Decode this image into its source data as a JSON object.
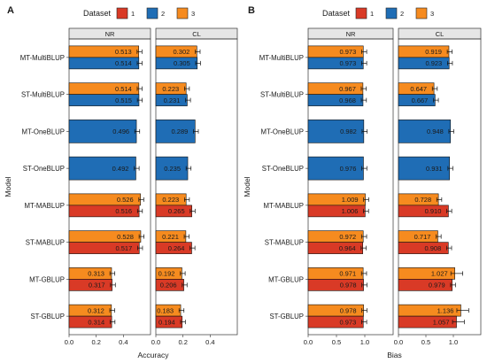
{
  "legend": {
    "title": "Dataset",
    "entries": [
      {
        "label": "1",
        "color": "#D93A26"
      },
      {
        "label": "2",
        "color": "#1F6DB5"
      },
      {
        "label": "3",
        "color": "#F68B1F"
      }
    ]
  },
  "chart_data": [
    {
      "type": "bar",
      "orientation": "horizontal",
      "panel_label": "A",
      "xlabel": "Accuracy",
      "ylabel": "Model",
      "xlim": [
        0,
        0.6
      ],
      "xticks": [
        "0.0",
        "0.2",
        "0.4"
      ],
      "xtick_values": [
        0,
        0.2,
        0.4
      ],
      "facets": [
        "NR",
        "CL"
      ],
      "models": [
        "MT-MultiBLUP",
        "ST-MultiBLUP",
        "MT-OneBLUP",
        "ST-OneBLUP",
        "MT-MABLUP",
        "ST-MABLUP",
        "MT-GBLUP",
        "ST-GBLUP"
      ],
      "series": [
        {
          "dataset": "1",
          "NR": [
            null,
            null,
            null,
            null,
            0.516,
            0.517,
            0.317,
            0.314
          ],
          "CL": [
            null,
            null,
            null,
            null,
            0.265,
            0.264,
            0.206,
            0.194
          ],
          "NR_labels": [
            null,
            null,
            null,
            null,
            "0.516",
            "0.517",
            "0.317",
            "0.314"
          ],
          "CL_labels": [
            null,
            null,
            null,
            null,
            "0.265",
            "0.264",
            "0.206",
            "0.194"
          ]
        },
        {
          "dataset": "2",
          "NR": [
            0.514,
            0.515,
            0.496,
            0.492,
            null,
            null,
            null,
            null
          ],
          "CL": [
            0.305,
            0.231,
            0.289,
            0.235,
            null,
            null,
            null,
            null
          ],
          "NR_labels": [
            "0.514",
            "0.515",
            "0.496",
            "0.492",
            null,
            null,
            null,
            null
          ],
          "CL_labels": [
            "0.305",
            "0.231",
            "0.289",
            "0.235",
            null,
            null,
            null,
            null
          ]
        },
        {
          "dataset": "3",
          "NR": [
            0.513,
            0.514,
            null,
            null,
            0.526,
            0.528,
            0.313,
            0.312
          ],
          "CL": [
            0.302,
            0.223,
            null,
            null,
            0.223,
            0.221,
            0.192,
            0.183
          ],
          "NR_labels": [
            "0.513",
            "0.514",
            null,
            null,
            "0.526",
            "0.528",
            "0.313",
            "0.312"
          ],
          "CL_labels": [
            "0.302",
            "0.223",
            null,
            null,
            "0.223",
            "0.221",
            "0.192",
            "0.183"
          ]
        }
      ]
    },
    {
      "type": "bar",
      "orientation": "horizontal",
      "panel_label": "B",
      "xlabel": "Bias",
      "ylabel": "Model",
      "xlim": [
        0,
        1.5
      ],
      "xticks": [
        "0.0",
        "0.5",
        "1.0"
      ],
      "xtick_values": [
        0,
        0.5,
        1.0
      ],
      "facets": [
        "NR",
        "CL"
      ],
      "models": [
        "MT-MultiBLUP",
        "ST-MultiBLUP",
        "MT-OneBLUP",
        "ST-OneBLUP",
        "MT-MABLUP",
        "ST-MABLUP",
        "MT-GBLUP",
        "ST-GBLUP"
      ],
      "series": [
        {
          "dataset": "1",
          "NR": [
            null,
            null,
            null,
            null,
            1.006,
            0.964,
            0.978,
            0.973
          ],
          "CL": [
            null,
            null,
            null,
            null,
            0.91,
            0.908,
            0.979,
            1.057
          ],
          "NR_labels": [
            null,
            null,
            null,
            null,
            "1.006",
            "0.964",
            "0.978",
            "0.973"
          ],
          "CL_labels": [
            null,
            null,
            null,
            null,
            "0.910",
            "0.908",
            "0.979",
            "1.057"
          ]
        },
        {
          "dataset": "2",
          "NR": [
            0.973,
            0.968,
            0.982,
            0.976,
            null,
            null,
            null,
            null
          ],
          "CL": [
            0.923,
            0.667,
            0.948,
            0.931,
            null,
            null,
            null,
            null
          ],
          "NR_labels": [
            "0.973",
            "0.968",
            "0.982",
            "0.976",
            null,
            null,
            null,
            null
          ],
          "CL_labels": [
            "0.923",
            "0.667",
            "0.948",
            "0.931",
            null,
            null,
            null,
            null
          ]
        },
        {
          "dataset": "3",
          "NR": [
            0.973,
            0.967,
            null,
            null,
            1.009,
            0.972,
            0.971,
            0.978
          ],
          "CL": [
            0.919,
            0.647,
            null,
            null,
            0.728,
            0.717,
            1.027,
            1.136
          ],
          "NR_labels": [
            "0.973",
            "0.967",
            null,
            null,
            "1.009",
            "0.972",
            "0.971",
            "0.978"
          ],
          "CL_labels": [
            "0.919",
            "0.647",
            null,
            null,
            "0.728",
            "0.717",
            "1.027",
            "1.136"
          ]
        }
      ]
    }
  ]
}
